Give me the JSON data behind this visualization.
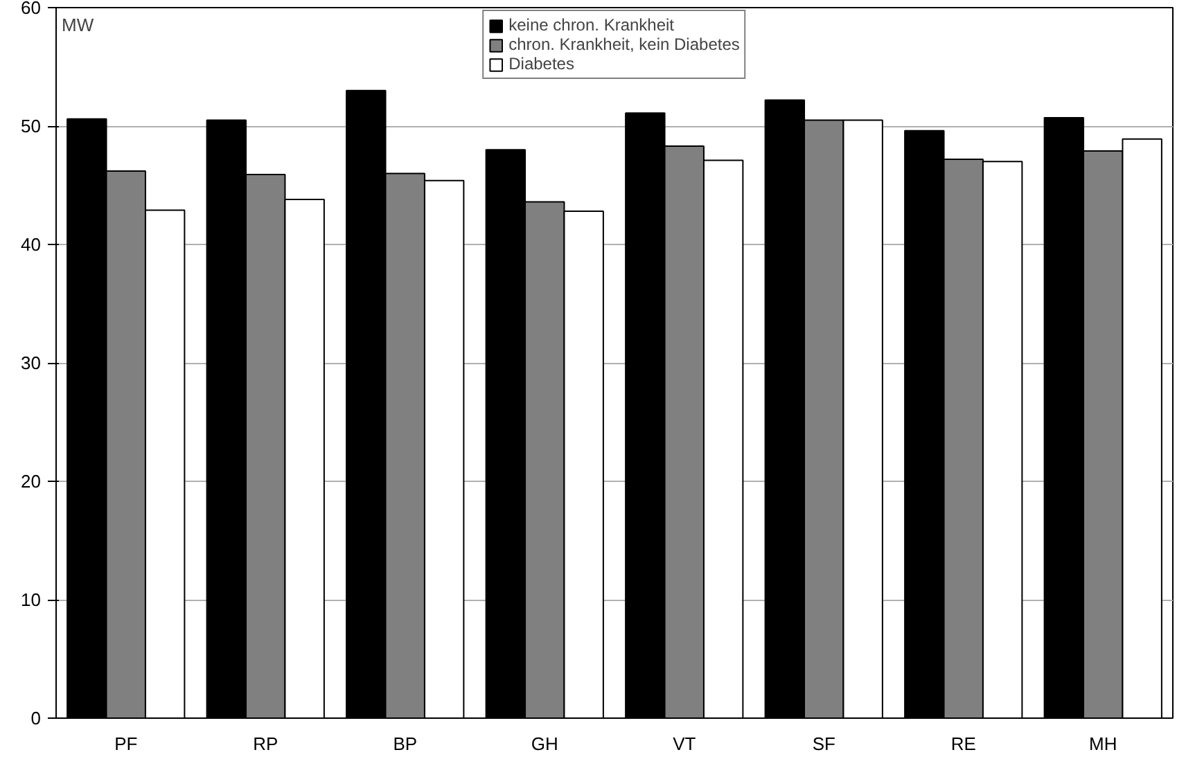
{
  "chart_data": {
    "type": "bar",
    "ylabel": "MW",
    "categories": [
      "PF",
      "RP",
      "BP",
      "GH",
      "VT",
      "SF",
      "RE",
      "MH"
    ],
    "series": [
      {
        "name": "keine chron. Krankheit",
        "color": "#000000",
        "values": [
          50.6,
          50.5,
          53.0,
          48.0,
          51.1,
          52.2,
          49.6,
          50.7
        ]
      },
      {
        "name": "chron. Krankheit, kein Diabetes",
        "color": "#808080",
        "values": [
          46.2,
          45.9,
          46.0,
          43.6,
          48.3,
          50.5,
          47.2,
          47.9
        ]
      },
      {
        "name": "Diabetes",
        "color": "#ffffff",
        "values": [
          42.9,
          43.8,
          45.4,
          42.8,
          47.1,
          50.5,
          47.0,
          48.9
        ]
      }
    ],
    "ylim": [
      0,
      60
    ],
    "yticks": [
      0,
      10,
      20,
      30,
      40,
      50,
      60
    ],
    "grid": "y",
    "legend": "top"
  }
}
